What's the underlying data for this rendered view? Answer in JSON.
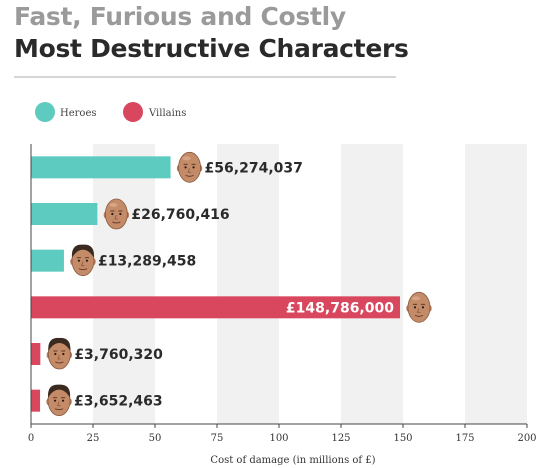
{
  "title_line1": "Fast, Furious and Costly",
  "title_line2": "Most Destructive Characters",
  "chart_data": {
    "type": "bar",
    "orientation": "horizontal",
    "xlabel": "Cost of damage (in millions of £)",
    "xlim": [
      0,
      200
    ],
    "xticks": [
      0,
      25,
      50,
      75,
      100,
      125,
      150,
      175,
      200
    ],
    "legend": {
      "placement": "top-left",
      "entries": [
        {
          "name": "Heroes",
          "color": "#5ecbc1"
        },
        {
          "name": "Villains",
          "color": "#d9475e"
        }
      ]
    },
    "bars": [
      {
        "value": 56.274037,
        "label": "£56,274,037",
        "group": "Heroes",
        "face_icon": "bald-man-face-icon"
      },
      {
        "value": 26.760416,
        "label": "£26,760,416",
        "group": "Heroes",
        "face_icon": "bald-man-face-icon"
      },
      {
        "value": 13.289458,
        "label": "£13,289,458",
        "group": "Heroes",
        "face_icon": "man-face-icon"
      },
      {
        "value": 148.786,
        "label": "£148,786,000",
        "group": "Villains",
        "face_icon": "bald-man-face-icon"
      },
      {
        "value": 3.76032,
        "label": "£3,760,320",
        "group": "Villains",
        "face_icon": "man-face-icon"
      },
      {
        "value": 3.652463,
        "label": "£3,652,463",
        "group": "Villains",
        "face_icon": "man-face-icon"
      }
    ],
    "grid": "alternating vertical bands",
    "colors": {
      "heroes": "#5ecbc1",
      "villains": "#d9475e",
      "band": "#f1f1f1",
      "axis": "#444444"
    }
  }
}
